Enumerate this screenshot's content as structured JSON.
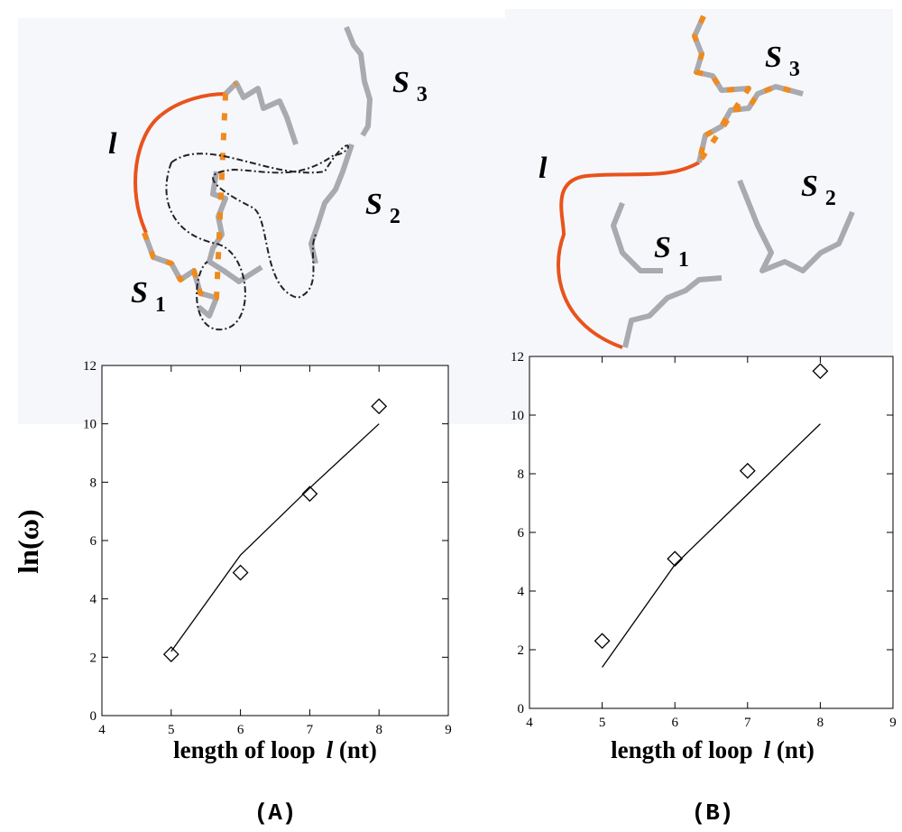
{
  "chart_data": [
    {
      "type": "scatter",
      "panel": "(A)",
      "ylabel": "ln(ω)",
      "xlabel": [
        "length of loop",
        "l",
        "(nt)"
      ],
      "x": [
        5,
        6,
        7,
        8
      ],
      "series": [
        {
          "marker": "diamond",
          "color": "#000000",
          "values": [
            2.1,
            4.9,
            7.6,
            10.6
          ]
        },
        {
          "marker": "line",
          "color": "#000000",
          "values": [
            2.2,
            5.5,
            7.8,
            10.0
          ]
        }
      ],
      "xlim": [
        4,
        9
      ],
      "ylim": [
        0,
        12
      ],
      "xticks": [
        4,
        5,
        6,
        7,
        8,
        9
      ],
      "yticks": [
        0,
        2,
        4,
        6,
        8,
        10,
        12
      ],
      "annotations": [
        {
          "label": "l"
        },
        {
          "label": "S",
          "sub": "1"
        },
        {
          "label": "S",
          "sub": "2"
        },
        {
          "label": "S",
          "sub": "3"
        }
      ]
    },
    {
      "type": "scatter",
      "panel": "(B)",
      "xlabel": [
        "length of loop",
        "l",
        "(nt)"
      ],
      "x": [
        5,
        6,
        7,
        8
      ],
      "series": [
        {
          "marker": "diamond",
          "color": "#000000",
          "values": [
            2.3,
            5.1,
            8.1,
            11.5
          ]
        },
        {
          "marker": "line",
          "color": "#000000",
          "values": [
            1.4,
            4.9,
            7.3,
            9.7
          ]
        }
      ],
      "xlim": [
        4,
        9
      ],
      "ylim": [
        0,
        12
      ],
      "xticks": [
        4,
        5,
        6,
        7,
        8,
        9
      ],
      "yticks": [
        0,
        2,
        4,
        6,
        8,
        10,
        12
      ],
      "annotations": [
        {
          "label": "l"
        },
        {
          "label": "S",
          "sub": "1"
        },
        {
          "label": "S",
          "sub": "2"
        },
        {
          "label": "S",
          "sub": "3"
        }
      ]
    }
  ]
}
